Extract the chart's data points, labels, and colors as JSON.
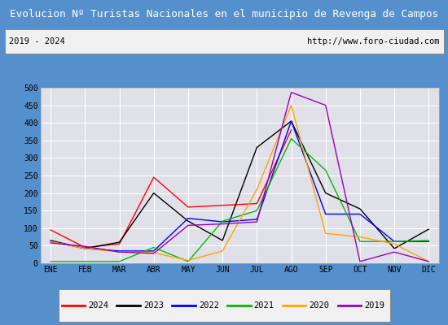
{
  "title": "Evolucion Nº Turistas Nacionales en el municipio de Revenga de Campos",
  "subtitle_left": "2019 - 2024",
  "subtitle_right": "http://www.foro-ciudad.com",
  "months": [
    "ENE",
    "FEB",
    "MAR",
    "ABR",
    "MAY",
    "JUN",
    "JUL",
    "AGO",
    "SEP",
    "OCT",
    "NOV",
    "DIC"
  ],
  "series": {
    "2024": [
      95,
      45,
      55,
      245,
      160,
      165,
      170,
      380,
      null,
      null,
      null,
      null
    ],
    "2023": [
      65,
      42,
      60,
      200,
      120,
      65,
      330,
      405,
      200,
      155,
      42,
      97
    ],
    "2022": [
      62,
      42,
      35,
      35,
      128,
      118,
      125,
      405,
      140,
      140,
      62,
      62
    ],
    "2021": [
      5,
      5,
      5,
      45,
      5,
      120,
      150,
      355,
      265,
      62,
      62,
      65
    ],
    "2020": [
      62,
      42,
      32,
      30,
      8,
      35,
      210,
      450,
      85,
      75,
      55,
      5
    ],
    "2019": [
      58,
      48,
      32,
      28,
      108,
      112,
      118,
      487,
      450,
      5,
      32,
      5
    ]
  },
  "colors": {
    "2024": "#ff0000",
    "2023": "#000000",
    "2022": "#0000ff",
    "2021": "#00bb00",
    "2020": "#ffa500",
    "2019": "#9900bb"
  },
  "ylim": [
    0,
    500
  ],
  "yticks": [
    0,
    50,
    100,
    150,
    200,
    250,
    300,
    350,
    400,
    450,
    500
  ],
  "title_bg_color": "#5590cc",
  "title_text_color": "#ffffff",
  "plot_bg_color": "#e0e0e8",
  "grid_color": "#ffffff",
  "fig_bg_color": "#5590cc",
  "subtitle_bg": "#f0f0f0",
  "legend_bg": "#f0f0f0"
}
